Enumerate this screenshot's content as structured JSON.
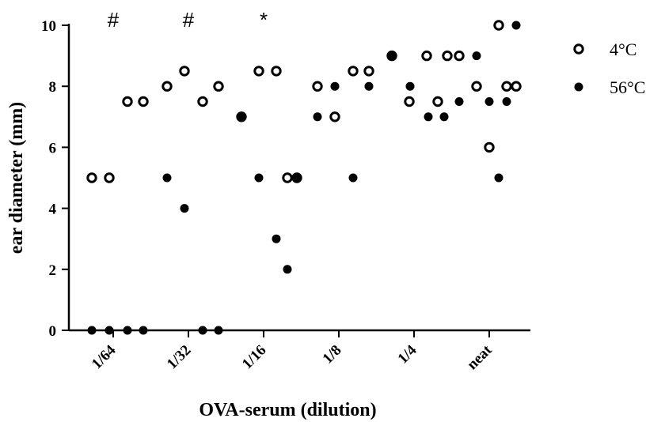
{
  "chart_data": {
    "type": "scatter",
    "categories": [
      "1/64",
      "1/32",
      "1/16",
      "1/8",
      "1/4",
      "neat"
    ],
    "xlabel": "OVA-serum (dilution)",
    "ylabel": "ear diameter (mm)",
    "ylim": [
      0,
      10
    ],
    "yticks": [
      0,
      2,
      4,
      6,
      8,
      10
    ],
    "grid": false,
    "legend_position": "top-right",
    "annotations": [
      {
        "category": "1/64",
        "text": "#"
      },
      {
        "category": "1/32",
        "text": "#"
      },
      {
        "category": "1/16",
        "text": "*"
      }
    ],
    "series": [
      {
        "name": "4°C",
        "marker": "open-circle",
        "points": [
          {
            "category": "1/64",
            "values": [
              5,
              5,
              7.5,
              7.5
            ]
          },
          {
            "category": "1/32",
            "values": [
              8,
              8.5,
              7.5,
              8
            ]
          },
          {
            "category": "1/16",
            "values": [
              7,
              8.5,
              8.5,
              5,
              5
            ]
          },
          {
            "category": "1/8",
            "values": [
              8,
              7,
              8.5,
              8.5
            ]
          },
          {
            "category": "1/4",
            "values": [
              9,
              7.5,
              9,
              7.5,
              9
            ]
          },
          {
            "category": "neat",
            "values": [
              9,
              8,
              6,
              10,
              8,
              8
            ]
          }
        ]
      },
      {
        "name": "56°C",
        "marker": "filled-circle",
        "points": [
          {
            "category": "1/64",
            "values": [
              0,
              0,
              0,
              0
            ]
          },
          {
            "category": "1/32",
            "values": [
              5,
              4,
              0,
              0
            ]
          },
          {
            "category": "1/16",
            "values": [
              7,
              5,
              3,
              2,
              5
            ]
          },
          {
            "category": "1/8",
            "values": [
              7,
              8,
              5,
              8
            ]
          },
          {
            "category": "1/4",
            "values": [
              9,
              8,
              7,
              7
            ]
          },
          {
            "category": "neat",
            "values": [
              7.5,
              9,
              7.5,
              5,
              7.5,
              10
            ]
          }
        ]
      }
    ]
  }
}
